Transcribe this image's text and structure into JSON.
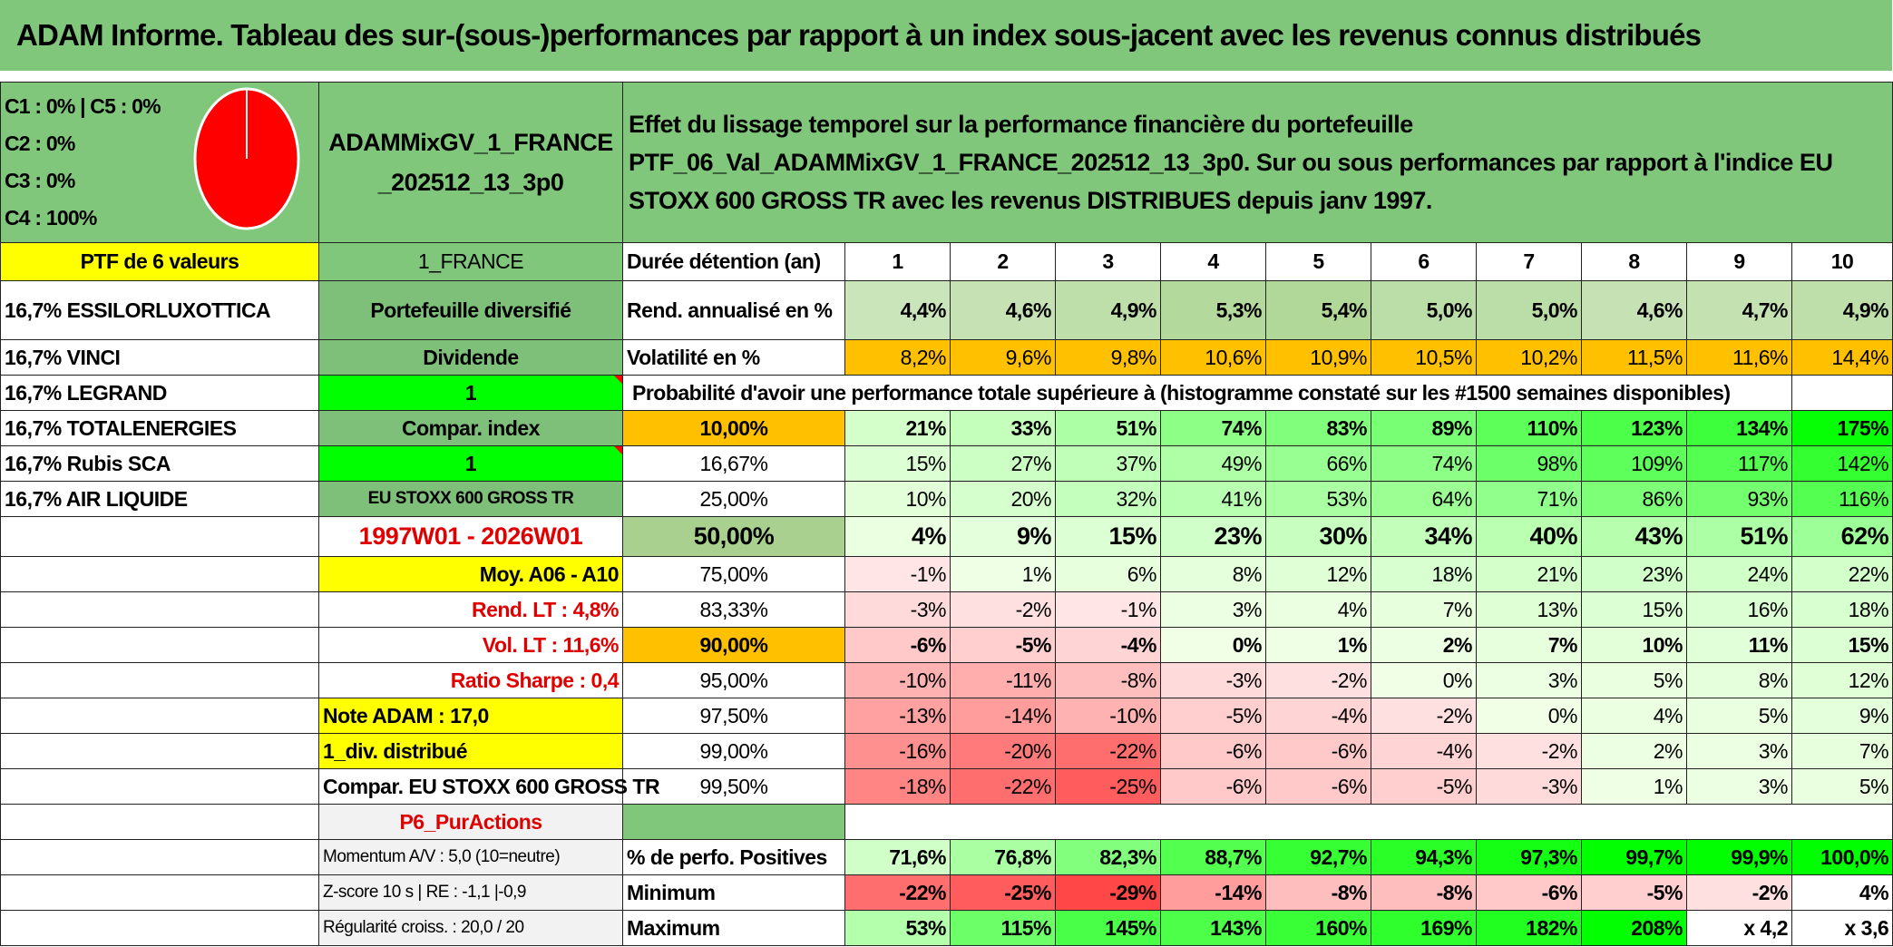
{
  "title": "ADAM Informe. Tableau des sur-(sous-)performances par rapport à un index sous-jacent avec les revenus connus distribués",
  "composition": [
    "C1 : 0% | C5 : 0%",
    "C2 : 0%",
    "C3 : 0%",
    "C4 : 100%"
  ],
  "ptf_name": "ADAMMixGV_1_FRANCE_202512_13_3p0",
  "description": "Effet du lissage temporel sur la performance financière du portefeuille PTF_06_Val_ADAMMixGV_1_FRANCE_202512_13_3p0. Sur ou sous performances par rapport à l'indice EU STOXX 600 GROSS TR avec les revenus DISTRIBUES depuis janv 1997.",
  "ptf_count": "PTF de 6 valeurs",
  "market": "1_FRANCE",
  "holding_label": "Durée détention (an)",
  "years": [
    "1",
    "2",
    "3",
    "4",
    "5",
    "6",
    "7",
    "8",
    "9",
    "10"
  ],
  "holdings": [
    "16,7% ESSILORLUXOTTICA",
    "16,7% VINCI",
    "16,7% LEGRAND",
    "16,7% TOTALENERGIES",
    "16,7% Rubis SCA",
    "16,7% AIR LIQUIDE"
  ],
  "col2": {
    "diversified": "Portefeuille diversifié",
    "dividend": "Dividende",
    "dividend_val": "1",
    "compar_index": "Compar. index",
    "compar_val": "1",
    "index_name": "EU STOXX 600 GROSS TR",
    "period": "1997W01 - 2026W01",
    "moy": "Moy. A06 - A10",
    "rend_lt": "Rend. LT : 4,8%",
    "vol_lt": "Vol. LT : 11,6%",
    "sharpe": "Ratio Sharpe : 0,4",
    "note": "Note ADAM : 17,0",
    "div_distrib": "1_div. distribué",
    "compar_stoxx": "Compar. EU STOXX 600 GROSS TR",
    "p6": "P6_PurActions",
    "momentum": "Momentum A/V : 5,0 (10=neutre)",
    "zscore": "Z-score 10 s | RE : -1,1 |-0,9",
    "regularite": "Régularité croiss. : 20,0 / 20"
  },
  "rend": {
    "label": "Rend. annualisé en %",
    "values": [
      "4,4%",
      "4,6%",
      "4,9%",
      "5,3%",
      "5,4%",
      "5,0%",
      "5,0%",
      "4,6%",
      "4,7%",
      "4,9%"
    ]
  },
  "vol": {
    "label": "Volatilité en %",
    "values": [
      "8,2%",
      "9,6%",
      "9,8%",
      "10,6%",
      "10,9%",
      "10,5%",
      "10,2%",
      "11,5%",
      "11,6%",
      "14,4%"
    ]
  },
  "prob_header": "Probabilité d'avoir une performance totale supérieure à (histogramme constaté sur les #1500 semaines disponibles)",
  "prob_rows": [
    {
      "pct": "10,00%",
      "values": [
        "21%",
        "33%",
        "51%",
        "74%",
        "83%",
        "89%",
        "110%",
        "123%",
        "134%",
        "175%"
      ]
    },
    {
      "pct": "16,67%",
      "values": [
        "15%",
        "27%",
        "37%",
        "49%",
        "66%",
        "74%",
        "98%",
        "109%",
        "117%",
        "142%"
      ]
    },
    {
      "pct": "25,00%",
      "values": [
        "10%",
        "20%",
        "32%",
        "41%",
        "53%",
        "64%",
        "71%",
        "86%",
        "93%",
        "116%"
      ]
    },
    {
      "pct": "50,00%",
      "values": [
        "4%",
        "9%",
        "15%",
        "23%",
        "30%",
        "34%",
        "40%",
        "43%",
        "51%",
        "62%"
      ]
    },
    {
      "pct": "75,00%",
      "values": [
        "-1%",
        "1%",
        "6%",
        "8%",
        "12%",
        "18%",
        "21%",
        "23%",
        "24%",
        "22%"
      ]
    },
    {
      "pct": "83,33%",
      "values": [
        "-3%",
        "-2%",
        "-1%",
        "3%",
        "4%",
        "7%",
        "13%",
        "15%",
        "16%",
        "18%"
      ]
    },
    {
      "pct": "90,00%",
      "values": [
        "-6%",
        "-5%",
        "-4%",
        "0%",
        "1%",
        "2%",
        "7%",
        "10%",
        "11%",
        "15%"
      ]
    },
    {
      "pct": "95,00%",
      "values": [
        "-10%",
        "-11%",
        "-8%",
        "-3%",
        "-2%",
        "0%",
        "3%",
        "5%",
        "8%",
        "12%"
      ]
    },
    {
      "pct": "97,50%",
      "values": [
        "-13%",
        "-14%",
        "-10%",
        "-5%",
        "-4%",
        "-2%",
        "0%",
        "4%",
        "5%",
        "9%"
      ]
    },
    {
      "pct": "99,00%",
      "values": [
        "-16%",
        "-20%",
        "-22%",
        "-6%",
        "-6%",
        "-4%",
        "-2%",
        "2%",
        "3%",
        "7%"
      ]
    },
    {
      "pct": "99,50%",
      "values": [
        "-18%",
        "-22%",
        "-25%",
        "-6%",
        "-6%",
        "-5%",
        "-3%",
        "1%",
        "3%",
        "5%"
      ]
    }
  ],
  "pos": {
    "label": "% de perfo. Positives",
    "values": [
      "71,6%",
      "76,8%",
      "82,3%",
      "88,7%",
      "92,7%",
      "94,3%",
      "97,3%",
      "99,7%",
      "99,9%",
      "100,0%"
    ]
  },
  "min": {
    "label": "Minimum",
    "values": [
      "-22%",
      "-25%",
      "-29%",
      "-14%",
      "-8%",
      "-8%",
      "-6%",
      "-5%",
      "-2%",
      "4%"
    ]
  },
  "max": {
    "label": "Maximum",
    "values": [
      "53%",
      "115%",
      "145%",
      "143%",
      "160%",
      "169%",
      "182%",
      "208%",
      "x 4,2",
      "x 3,6"
    ]
  },
  "colors": {
    "header_green": "#80c77c",
    "yellow": "#ffff00",
    "bright_green": "#00ff00",
    "orange": "#ffc000",
    "pie_red": "#ff0000"
  }
}
